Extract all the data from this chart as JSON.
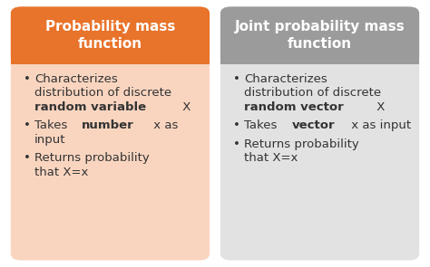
{
  "left_title": "Probability mass\nfunction",
  "right_title": "Joint probability mass\nfunction",
  "left_header_color": "#E8732A",
  "right_header_color": "#9B9B9B",
  "left_body_color": "#F9D5C0",
  "right_body_color": "#E2E2E2",
  "header_text_color": "#FFFFFF",
  "body_text_color": "#333333",
  "left_bullets": [
    [
      "Characterizes\ndistribution of discrete\n",
      "random variable",
      " X"
    ],
    [
      "Takes ",
      "number",
      " x as\ninput"
    ],
    [
      "Returns probability\nthat X=x"
    ]
  ],
  "left_bold": [
    [
      false,
      true,
      false
    ],
    [
      false,
      true,
      false
    ],
    [
      false
    ]
  ],
  "right_bullets": [
    [
      "Characterizes\ndistribution of discrete\n",
      "random vector",
      " X"
    ],
    [
      "Takes ",
      "vector",
      " x as input"
    ],
    [
      "Returns probability\nthat X=x"
    ]
  ],
  "right_bold": [
    [
      false,
      true,
      false
    ],
    [
      false,
      true,
      false
    ],
    [
      false
    ]
  ],
  "header_font_size": 11,
  "bullet_font_size": 9.5
}
